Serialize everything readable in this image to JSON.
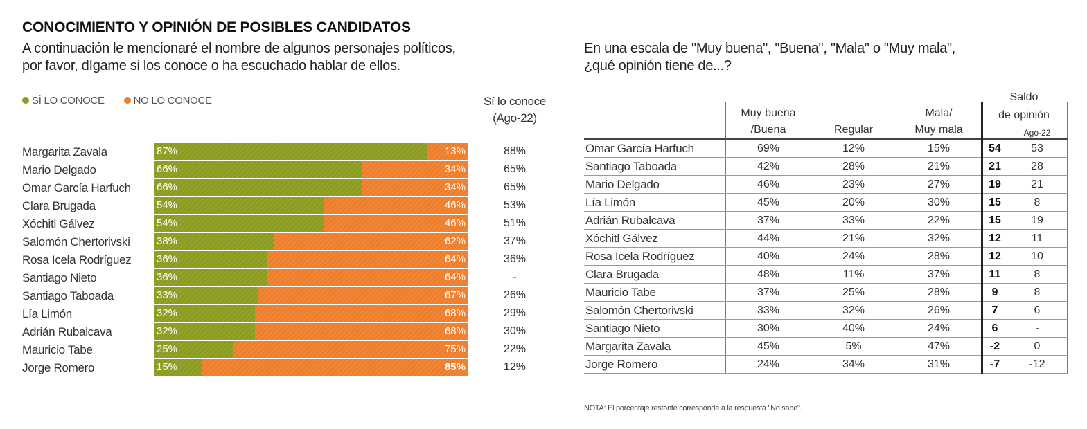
{
  "left": {
    "title": "CONOCIMIENTO Y OPINIÓN DE POSIBLES CANDIDATOS",
    "question_line1": "A continuación le mencionaré el nombre de algunos personajes políticos,",
    "question_line2": "por favor, dígame si los conoce o ha escuchado hablar de ellos.",
    "legend_yes": "SÍ LO CONOCE",
    "legend_no": "NO LO CONOCE",
    "prev_header_line1": "Sí lo conoce",
    "prev_header_line2": "(Ago-22)"
  },
  "right": {
    "question_line1": "En una escala de \"Muy buena\", \"Buena\", \"Mala\" o \"Muy mala\",",
    "question_line2": "¿qué opinión tiene de...?",
    "col_good_line1": "Muy buena",
    "col_good_line2": "/Buena",
    "col_regular": "Regular",
    "col_bad_line1": "Mala/",
    "col_bad_line2": "Muy mala",
    "saldo_line1": "Saldo",
    "saldo_line2": "de opinión",
    "col_ago": "Ago-22",
    "note": "NOTA: El porcentaje restante corresponde a la respuesta \"No sabe\"."
  },
  "colors": {
    "yes": "#8a9b1e",
    "no": "#ee7d2a"
  },
  "chart_data": [
    {
      "type": "bar",
      "stacked": true,
      "orientation": "horizontal",
      "title": "CONOCIMIENTO Y OPINIÓN DE POSIBLES CANDIDATOS",
      "categories": [
        "Margarita Zavala",
        "Mario Delgado",
        "Omar García Harfuch",
        "Clara Brugada",
        "Xóchitl Gálvez",
        "Salomón Chertorivski",
        "Rosa Icela Rodríguez",
        "Santiago Nieto",
        "Santiago Taboada",
        "Lía Limón",
        "Adrián Rubalcava",
        "Mauricio Tabe",
        "Jorge Romero"
      ],
      "series": [
        {
          "name": "SÍ LO CONOCE",
          "values": [
            87,
            66,
            66,
            54,
            54,
            38,
            36,
            36,
            33,
            32,
            32,
            25,
            15
          ]
        },
        {
          "name": "NO LO CONOCE",
          "values": [
            13,
            34,
            34,
            46,
            46,
            62,
            64,
            64,
            67,
            68,
            68,
            75,
            85
          ]
        }
      ],
      "yes_labels": [
        "87%",
        "66%",
        "66%",
        "54%",
        "54%",
        "38%",
        "36%",
        "36%",
        "33%",
        "32%",
        "32%",
        "25%",
        "15%"
      ],
      "no_labels": [
        "13%",
        "34%",
        "34%",
        "46%",
        "46%",
        "62%",
        "64%",
        "64%",
        "67%",
        "68%",
        "68%",
        "75%",
        "85%"
      ],
      "previous_aug22": [
        "88%",
        "65%",
        "65%",
        "53%",
        "51%",
        "37%",
        "36%",
        "-",
        "26%",
        "29%",
        "30%",
        "22%",
        "12%"
      ],
      "xlim": [
        0,
        100
      ],
      "legend": "top-left"
    },
    {
      "type": "table",
      "rows": [
        {
          "name": "Omar García Harfuch",
          "good": "69%",
          "regular": "12%",
          "bad": "15%",
          "saldo": "54",
          "ago": "53"
        },
        {
          "name": "Santiago Taboada",
          "good": "42%",
          "regular": "28%",
          "bad": "21%",
          "saldo": "21",
          "ago": "28"
        },
        {
          "name": "Mario Delgado",
          "good": "46%",
          "regular": "23%",
          "bad": "27%",
          "saldo": "19",
          "ago": "21"
        },
        {
          "name": "Lía Limón",
          "good": "45%",
          "regular": "20%",
          "bad": "30%",
          "saldo": "15",
          "ago": "8"
        },
        {
          "name": "Adrián Rubalcava",
          "good": "37%",
          "regular": "33%",
          "bad": "22%",
          "saldo": "15",
          "ago": "19"
        },
        {
          "name": "Xóchitl Gálvez",
          "good": "44%",
          "regular": "21%",
          "bad": "32%",
          "saldo": "12",
          "ago": "11"
        },
        {
          "name": "Rosa Icela Rodríguez",
          "good": "40%",
          "regular": "24%",
          "bad": "28%",
          "saldo": "12",
          "ago": "10"
        },
        {
          "name": "Clara Brugada",
          "good": "48%",
          "regular": "11%",
          "bad": "37%",
          "saldo": "11",
          "ago": "8"
        },
        {
          "name": "Mauricio Tabe",
          "good": "37%",
          "regular": "25%",
          "bad": "28%",
          "saldo": "9",
          "ago": "8"
        },
        {
          "name": "Salomón Chertorivski",
          "good": "33%",
          "regular": "32%",
          "bad": "26%",
          "saldo": "7",
          "ago": "6"
        },
        {
          "name": "Santiago Nieto",
          "good": "30%",
          "regular": "40%",
          "bad": "24%",
          "saldo": "6",
          "ago": "-"
        },
        {
          "name": "Margarita Zavala",
          "good": "45%",
          "regular": "5%",
          "bad": "47%",
          "saldo": "-2",
          "ago": "0"
        },
        {
          "name": "Jorge Romero",
          "good": "24%",
          "regular": "34%",
          "bad": "31%",
          "saldo": "-7",
          "ago": "-12"
        }
      ]
    }
  ]
}
